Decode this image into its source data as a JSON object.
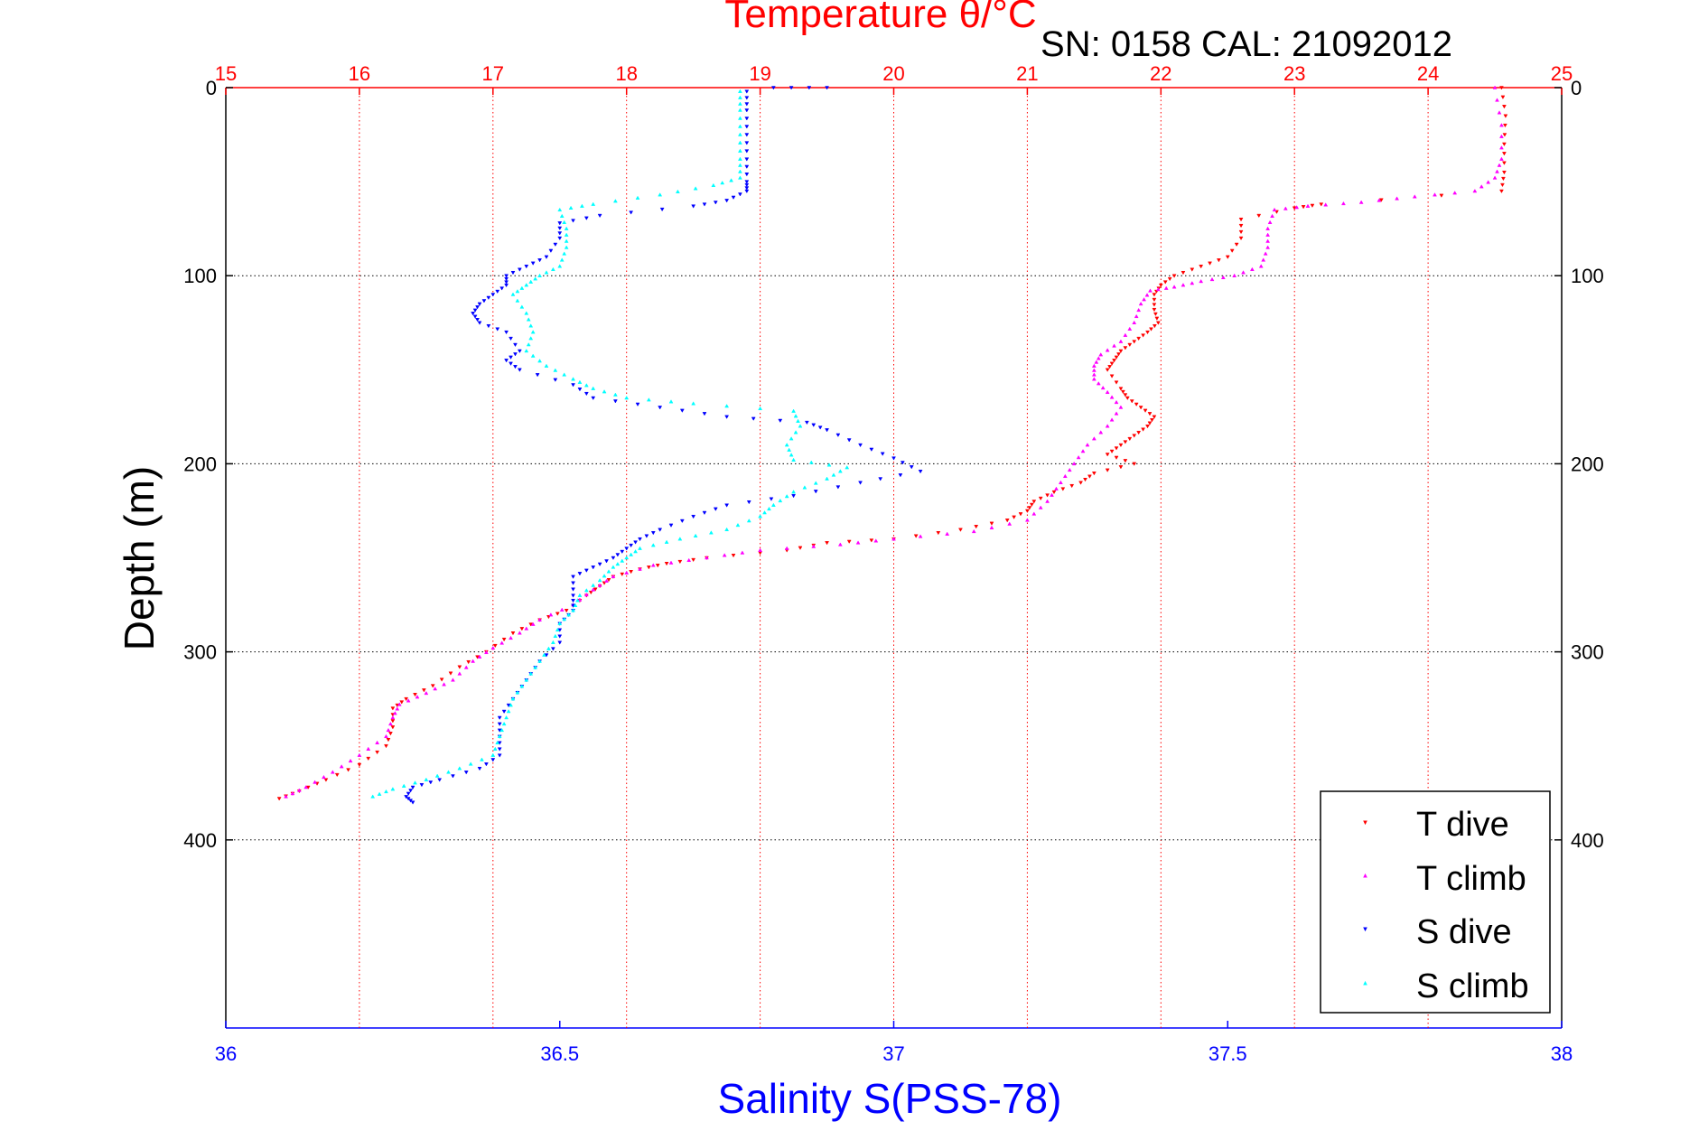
{
  "chart_data": {
    "type": "scatter",
    "title": "Temperature θ/°C",
    "subtitle": "SN: 0158  CAL: 21092012",
    "xlabel": "Salinity S(PSS-78)",
    "ylabel": "Depth (m)",
    "x_top": {
      "label": "Temperature θ/°C",
      "range": [
        15,
        25
      ],
      "ticks": [
        15,
        16,
        17,
        18,
        19,
        20,
        21,
        22,
        23,
        24,
        25
      ],
      "color": "#ff0000"
    },
    "x_bottom": {
      "label": "Salinity S(PSS-78)",
      "range": [
        36,
        38
      ],
      "ticks": [
        "36",
        "36.5",
        "37",
        "37.5",
        "38"
      ],
      "color": "#0000ff"
    },
    "y": {
      "range": [
        0,
        500
      ],
      "reversed": true,
      "ticks": [
        0,
        100,
        200,
        300,
        400
      ]
    },
    "grid": true,
    "legend": {
      "placement": "bottom-right",
      "entries": [
        "T dive",
        "T climb",
        "S dive",
        "S climb"
      ]
    },
    "series": [
      {
        "name": "T dive",
        "axis": "temperature",
        "marker": "triangle-down",
        "color": "#ff0000",
        "points": [
          [
            24.55,
            0
          ],
          [
            24.58,
            15
          ],
          [
            24.57,
            30
          ],
          [
            24.57,
            45
          ],
          [
            24.55,
            55
          ],
          [
            23.2,
            62
          ],
          [
            23.0,
            64
          ],
          [
            22.6,
            70
          ],
          [
            22.6,
            80
          ],
          [
            22.5,
            90
          ],
          [
            22.3,
            95
          ],
          [
            22.1,
            100
          ],
          [
            22.0,
            105
          ],
          [
            21.95,
            110
          ],
          [
            21.95,
            118
          ],
          [
            21.98,
            125
          ],
          [
            21.9,
            130
          ],
          [
            21.8,
            135
          ],
          [
            21.7,
            140
          ],
          [
            21.65,
            145
          ],
          [
            21.6,
            150
          ],
          [
            21.7,
            160
          ],
          [
            21.75,
            165
          ],
          [
            21.85,
            170
          ],
          [
            21.95,
            175
          ],
          [
            21.9,
            180
          ],
          [
            21.8,
            185
          ],
          [
            21.7,
            190
          ],
          [
            21.6,
            195
          ],
          [
            21.8,
            200
          ],
          [
            21.5,
            205
          ],
          [
            21.4,
            210
          ],
          [
            21.2,
            215
          ],
          [
            21.05,
            220
          ],
          [
            21.0,
            225
          ],
          [
            20.85,
            230
          ],
          [
            20.5,
            235
          ],
          [
            20.0,
            240
          ],
          [
            19.5,
            242
          ],
          [
            19.2,
            246
          ],
          [
            18.6,
            250
          ],
          [
            18.3,
            253
          ],
          [
            18.1,
            256
          ],
          [
            17.9,
            260
          ],
          [
            17.8,
            265
          ],
          [
            17.7,
            270
          ],
          [
            17.55,
            278
          ],
          [
            17.35,
            283
          ],
          [
            17.15,
            290
          ],
          [
            16.95,
            300
          ],
          [
            16.75,
            308
          ],
          [
            16.55,
            318
          ],
          [
            16.35,
            325
          ],
          [
            16.25,
            330
          ],
          [
            16.25,
            340
          ],
          [
            16.2,
            350
          ],
          [
            16.0,
            360
          ],
          [
            15.75,
            368
          ],
          [
            15.55,
            374
          ],
          [
            15.4,
            378
          ]
        ]
      },
      {
        "name": "T climb",
        "axis": "temperature",
        "marker": "triangle-up",
        "color": "#ff00ff",
        "points": [
          [
            24.5,
            0
          ],
          [
            24.55,
            20
          ],
          [
            24.55,
            38
          ],
          [
            24.5,
            48
          ],
          [
            24.35,
            55
          ],
          [
            23.9,
            58
          ],
          [
            23.5,
            61
          ],
          [
            23.1,
            63
          ],
          [
            22.85,
            65
          ],
          [
            22.8,
            75
          ],
          [
            22.8,
            85
          ],
          [
            22.75,
            95
          ],
          [
            22.55,
            100
          ],
          [
            22.3,
            103
          ],
          [
            22.1,
            106
          ],
          [
            21.92,
            108
          ],
          [
            21.85,
            115
          ],
          [
            21.8,
            125
          ],
          [
            21.7,
            135
          ],
          [
            21.55,
            142
          ],
          [
            21.5,
            148
          ],
          [
            21.5,
            155
          ],
          [
            21.6,
            162
          ],
          [
            21.7,
            170
          ],
          [
            21.6,
            180
          ],
          [
            21.45,
            190
          ],
          [
            21.35,
            200
          ],
          [
            21.25,
            210
          ],
          [
            21.15,
            220
          ],
          [
            21.0,
            230
          ],
          [
            20.6,
            236
          ],
          [
            20.0,
            240
          ],
          [
            19.6,
            243
          ],
          [
            19.0,
            246
          ],
          [
            18.6,
            250
          ],
          [
            18.2,
            254
          ],
          [
            17.9,
            260
          ],
          [
            17.75,
            267
          ],
          [
            17.6,
            275
          ],
          [
            17.35,
            283
          ],
          [
            17.2,
            290
          ],
          [
            17.0,
            298
          ],
          [
            16.85,
            305
          ],
          [
            16.7,
            315
          ],
          [
            16.5,
            322
          ],
          [
            16.3,
            328
          ],
          [
            16.25,
            335
          ],
          [
            16.2,
            345
          ],
          [
            16.0,
            355
          ],
          [
            15.8,
            364
          ],
          [
            15.6,
            372
          ],
          [
            15.45,
            377
          ]
        ]
      },
      {
        "name": "S dive",
        "axis": "salinity",
        "marker": "triangle-down",
        "color": "#0000ff",
        "points": [
          [
            36.78,
            2
          ],
          [
            36.78,
            12
          ],
          [
            36.78,
            25
          ],
          [
            36.78,
            38
          ],
          [
            36.78,
            50
          ],
          [
            36.78,
            55
          ],
          [
            36.75,
            60
          ],
          [
            36.7,
            63
          ],
          [
            36.56,
            68
          ],
          [
            36.5,
            72
          ],
          [
            36.5,
            80
          ],
          [
            36.48,
            90
          ],
          [
            36.45,
            95
          ],
          [
            36.42,
            100
          ],
          [
            36.42,
            105
          ],
          [
            36.4,
            110
          ],
          [
            36.38,
            115
          ],
          [
            36.37,
            120
          ],
          [
            36.38,
            125
          ],
          [
            36.42,
            130
          ],
          [
            36.44,
            140
          ],
          [
            36.42,
            145
          ],
          [
            36.44,
            150
          ],
          [
            36.52,
            158
          ],
          [
            36.55,
            165
          ],
          [
            36.65,
            170
          ],
          [
            36.75,
            175
          ],
          [
            36.87,
            178
          ],
          [
            36.9,
            182
          ],
          [
            36.95,
            190
          ],
          [
            37.0,
            197
          ],
          [
            37.04,
            204
          ],
          [
            36.95,
            210
          ],
          [
            36.85,
            217
          ],
          [
            36.75,
            222
          ],
          [
            36.7,
            228
          ],
          [
            36.65,
            235
          ],
          [
            36.62,
            240
          ],
          [
            36.6,
            245
          ],
          [
            36.58,
            250
          ],
          [
            36.55,
            255
          ],
          [
            36.52,
            260
          ],
          [
            36.52,
            270
          ],
          [
            36.52,
            278
          ],
          [
            36.5,
            285
          ],
          [
            36.5,
            295
          ],
          [
            36.47,
            305
          ],
          [
            36.45,
            315
          ],
          [
            36.43,
            325
          ],
          [
            36.41,
            335
          ],
          [
            36.41,
            345
          ],
          [
            36.41,
            355
          ],
          [
            36.38,
            362
          ],
          [
            36.32,
            368
          ],
          [
            36.28,
            372
          ],
          [
            36.27,
            377
          ],
          [
            36.28,
            380
          ],
          [
            36.9,
            0
          ],
          [
            36.82,
            0
          ]
        ]
      },
      {
        "name": "S climb",
        "axis": "salinity",
        "marker": "triangle-up",
        "color": "#00ffff",
        "points": [
          [
            36.77,
            2
          ],
          [
            36.77,
            12
          ],
          [
            36.77,
            25
          ],
          [
            36.77,
            38
          ],
          [
            36.77,
            48
          ],
          [
            36.73,
            52
          ],
          [
            36.65,
            57
          ],
          [
            36.55,
            62
          ],
          [
            36.5,
            65
          ],
          [
            36.51,
            75
          ],
          [
            36.51,
            85
          ],
          [
            36.5,
            95
          ],
          [
            36.47,
            100
          ],
          [
            36.45,
            105
          ],
          [
            36.43,
            110
          ],
          [
            36.45,
            120
          ],
          [
            36.46,
            130
          ],
          [
            36.45,
            140
          ],
          [
            36.48,
            148
          ],
          [
            36.52,
            155
          ],
          [
            36.55,
            160
          ],
          [
            36.6,
            165
          ],
          [
            36.7,
            168
          ],
          [
            36.85,
            172
          ],
          [
            36.86,
            180
          ],
          [
            36.84,
            190
          ],
          [
            36.85,
            198
          ],
          [
            36.93,
            202
          ],
          [
            36.9,
            208
          ],
          [
            36.85,
            215
          ],
          [
            36.82,
            222
          ],
          [
            36.8,
            228
          ],
          [
            36.75,
            235
          ],
          [
            36.68,
            240
          ],
          [
            36.62,
            245
          ],
          [
            36.6,
            250
          ],
          [
            36.58,
            255
          ],
          [
            36.56,
            262
          ],
          [
            36.53,
            270
          ],
          [
            36.52,
            278
          ],
          [
            36.5,
            285
          ],
          [
            36.49,
            295
          ],
          [
            36.47,
            305
          ],
          [
            36.45,
            315
          ],
          [
            36.43,
            325
          ],
          [
            36.42,
            335
          ],
          [
            36.41,
            345
          ],
          [
            36.4,
            355
          ],
          [
            36.35,
            362
          ],
          [
            36.3,
            368
          ],
          [
            36.25,
            373
          ],
          [
            36.22,
            377
          ]
        ]
      }
    ]
  }
}
